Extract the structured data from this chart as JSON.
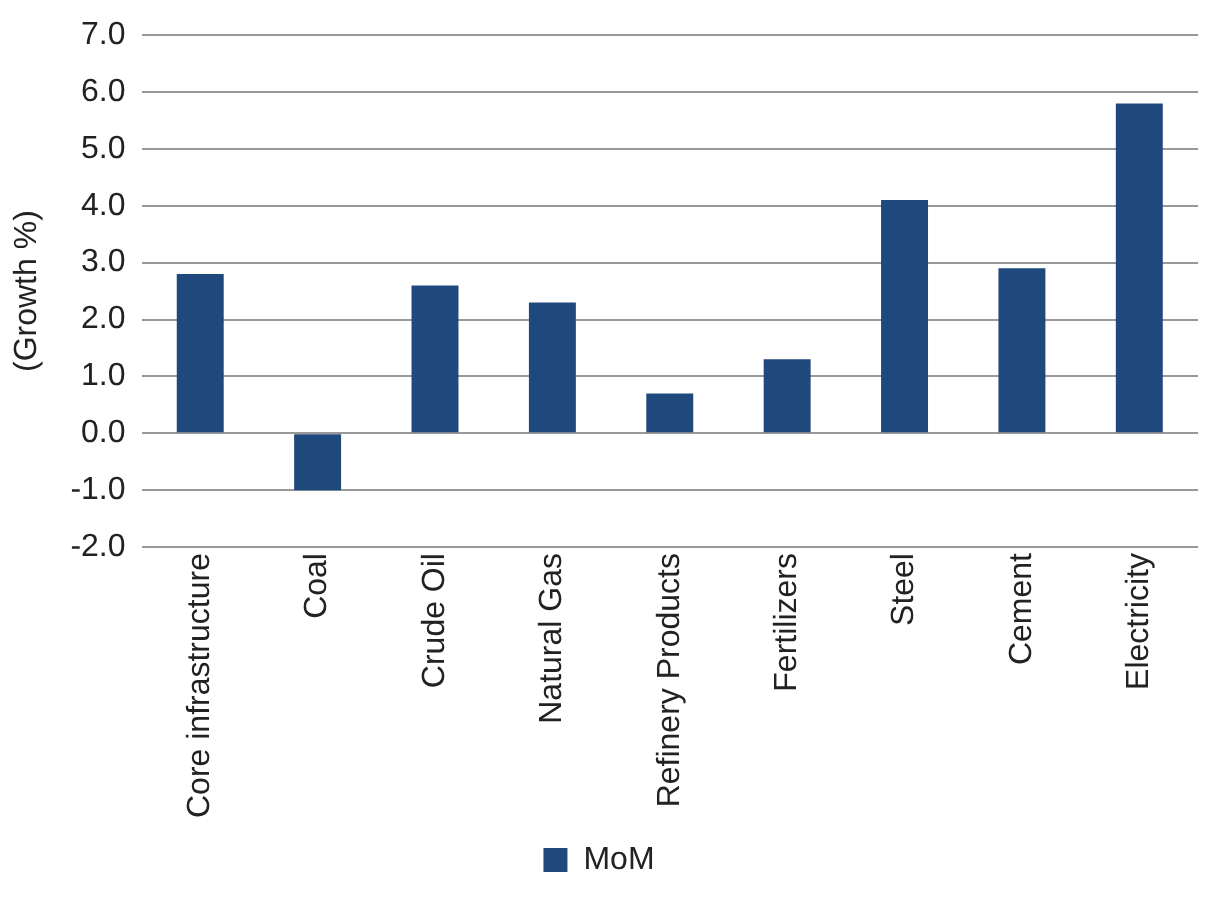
{
  "chart_data": {
    "type": "bar",
    "ylabel": "(Growth %)",
    "categories": [
      "Core infrastructure",
      "Coal",
      "Crude Oil",
      "Natural Gas",
      "Refinery Products",
      "Fertilizers",
      "Steel",
      "Cement",
      "Electricity"
    ],
    "series": [
      {
        "name": "MoM",
        "color": "#1f497d",
        "values": [
          2.8,
          -1.0,
          2.6,
          2.3,
          0.7,
          1.3,
          4.1,
          2.9,
          5.8
        ]
      }
    ],
    "ylim": [
      -2,
      7
    ],
    "yticks": [
      {
        "value": -2,
        "label": "-2.0"
      },
      {
        "value": -1,
        "label": "-1.0"
      },
      {
        "value": 0,
        "label": "0.0"
      },
      {
        "value": 1,
        "label": "1.0"
      },
      {
        "value": 2,
        "label": "2.0"
      },
      {
        "value": 3,
        "label": "3.0"
      },
      {
        "value": 4,
        "label": "4.0"
      },
      {
        "value": 5,
        "label": "5.0"
      },
      {
        "value": 6,
        "label": "6.0"
      },
      {
        "value": 7,
        "label": "7.0"
      }
    ],
    "grid": "y",
    "legend": "bottom"
  }
}
